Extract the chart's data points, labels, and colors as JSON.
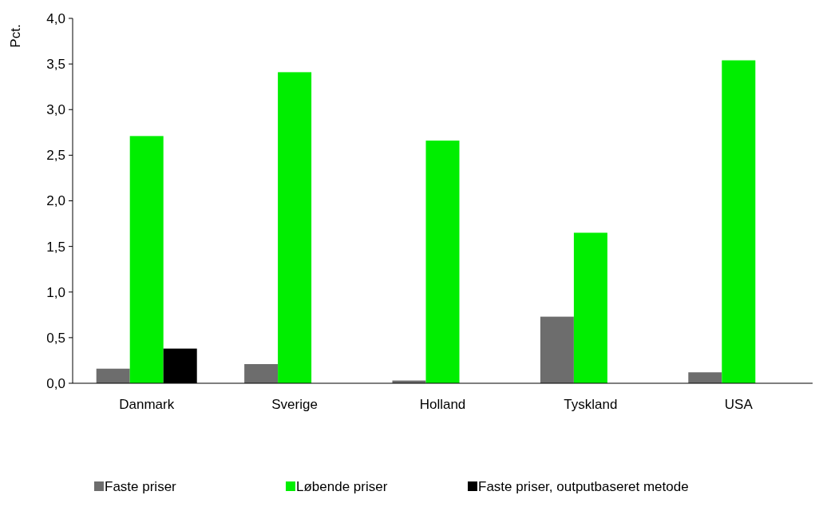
{
  "chart_data": {
    "type": "bar",
    "ylabel": "Pct.",
    "categories": [
      "Danmark",
      "Sverige",
      "Holland",
      "Tyskland",
      "USA"
    ],
    "series": [
      {
        "name": "Faste priser",
        "color": "#6d6d6d",
        "values": [
          0.16,
          0.21,
          0.03,
          0.73,
          0.12
        ]
      },
      {
        "name": "Løbende priser",
        "color": "#00ee00",
        "values": [
          2.71,
          3.41,
          2.66,
          1.65,
          3.54
        ]
      },
      {
        "name": "Faste priser, outputbaseret metode",
        "color": "#000000",
        "values": [
          0.38,
          null,
          null,
          null,
          null
        ]
      }
    ],
    "ylim": [
      0,
      4
    ],
    "yticks": [
      {
        "value": 0,
        "label": "0,0"
      },
      {
        "value": 0.5,
        "label": "0,5"
      },
      {
        "value": 1,
        "label": "1,0"
      },
      {
        "value": 1.5,
        "label": "1,5"
      },
      {
        "value": 2,
        "label": "2,0"
      },
      {
        "value": 2.5,
        "label": "2,5"
      },
      {
        "value": 3,
        "label": "3,0"
      },
      {
        "value": 3.5,
        "label": "3,5"
      },
      {
        "value": 4,
        "label": "4,0"
      }
    ],
    "grid": false,
    "legend": "bottom"
  }
}
